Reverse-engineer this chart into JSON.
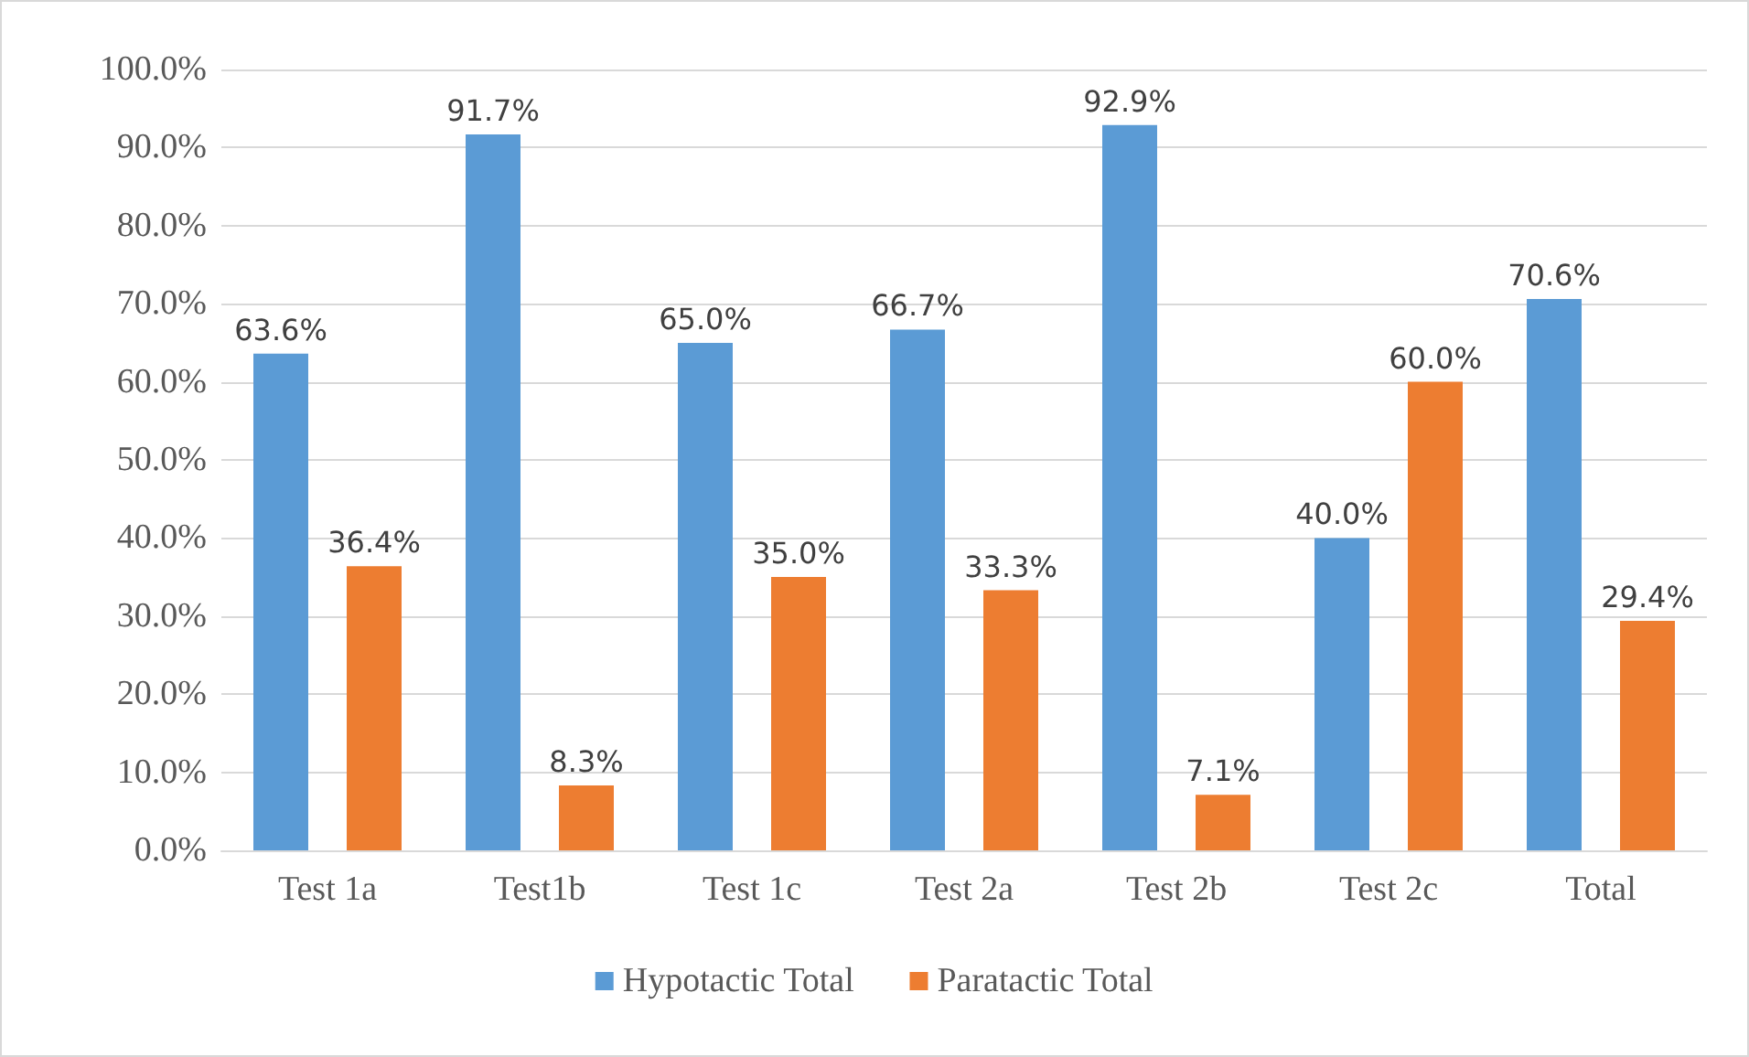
{
  "chart_data": {
    "type": "bar",
    "categories": [
      "Test 1a",
      "Test1b",
      "Test 1c",
      "Test 2a",
      "Test 2b",
      "Test 2c",
      "Total"
    ],
    "series": [
      {
        "name": "Hypotactic Total",
        "color": "#5b9bd5",
        "values": [
          63.6,
          91.7,
          65.0,
          66.7,
          92.9,
          40.0,
          70.6
        ],
        "value_labels": [
          "63.6%",
          "91.7%",
          "65.0%",
          "66.7%",
          "92.9%",
          "40.0%",
          "70.6%"
        ]
      },
      {
        "name": "Paratactic Total",
        "color": "#ed7d31",
        "values": [
          36.4,
          8.3,
          35.0,
          33.3,
          7.1,
          60.0,
          29.4
        ],
        "value_labels": [
          "36.4%",
          "8.3%",
          "35.0%",
          "33.3%",
          "7.1%",
          "60.0%",
          "29.4%"
        ]
      }
    ],
    "ylim": [
      0,
      100
    ],
    "yticks": [
      {
        "value": 0,
        "label": "0.0%"
      },
      {
        "value": 10,
        "label": "10.0%"
      },
      {
        "value": 20,
        "label": "20.0%"
      },
      {
        "value": 30,
        "label": "30.0%"
      },
      {
        "value": 40,
        "label": "40.0%"
      },
      {
        "value": 50,
        "label": "50.0%"
      },
      {
        "value": 60,
        "label": "60.0%"
      },
      {
        "value": 70,
        "label": "70.0%"
      },
      {
        "value": 80,
        "label": "80.0%"
      },
      {
        "value": 90,
        "label": "90.0%"
      },
      {
        "value": 100,
        "label": "100.0%"
      }
    ],
    "grid": true,
    "legend": "bottom"
  }
}
